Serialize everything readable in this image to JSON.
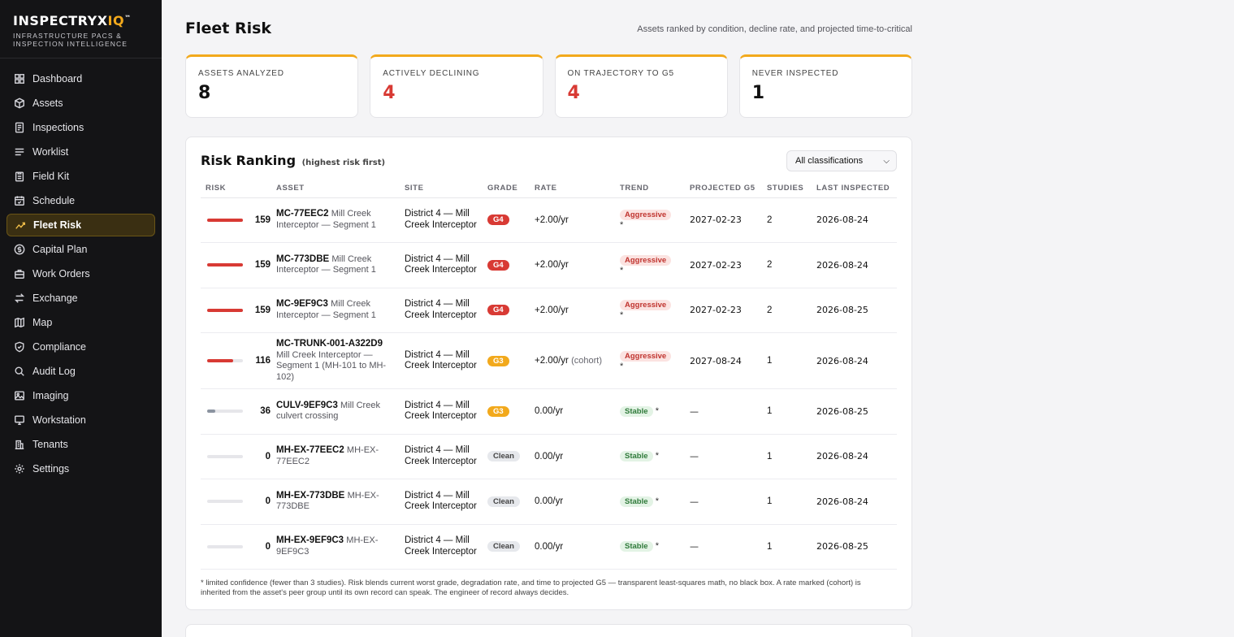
{
  "brand": {
    "name": "INSPECTRYX",
    "name_accent": "IQ",
    "tagline": "INFRASTRUCTURE PACS & INSPECTION INTELLIGENCE"
  },
  "sidebar": {
    "items": [
      {
        "label": "Dashboard",
        "icon": "grid-icon"
      },
      {
        "label": "Assets",
        "icon": "box-icon"
      },
      {
        "label": "Inspections",
        "icon": "doc-icon"
      },
      {
        "label": "Worklist",
        "icon": "list-icon"
      },
      {
        "label": "Field Kit",
        "icon": "clipboard-icon"
      },
      {
        "label": "Schedule",
        "icon": "calendar-icon"
      },
      {
        "label": "Fleet Risk",
        "icon": "trend-icon",
        "active": true
      },
      {
        "label": "Capital Plan",
        "icon": "dollar-icon"
      },
      {
        "label": "Work Orders",
        "icon": "briefcase-icon"
      },
      {
        "label": "Exchange",
        "icon": "swap-icon"
      },
      {
        "label": "Map",
        "icon": "map-icon"
      },
      {
        "label": "Compliance",
        "icon": "shield-icon"
      },
      {
        "label": "Audit Log",
        "icon": "search-icon"
      },
      {
        "label": "Imaging",
        "icon": "image-icon"
      },
      {
        "label": "Workstation",
        "icon": "monitor-icon"
      },
      {
        "label": "Tenants",
        "icon": "building-icon"
      },
      {
        "label": "Settings",
        "icon": "gear-icon"
      }
    ]
  },
  "header": {
    "title": "Fleet Risk",
    "subtitle": "Assets ranked by condition, decline rate, and projected time-to-critical"
  },
  "stats": [
    {
      "label": "ASSETS ANALYZED",
      "value": "8",
      "color": "#111111"
    },
    {
      "label": "ACTIVELY DECLINING",
      "value": "4",
      "color": "#d83a34"
    },
    {
      "label": "ON TRAJECTORY TO G5",
      "value": "4",
      "color": "#d83a34"
    },
    {
      "label": "NEVER INSPECTED",
      "value": "1",
      "color": "#111111"
    }
  ],
  "ranking": {
    "title": "Risk Ranking",
    "hint": "(highest risk first)",
    "filter": "All classifications",
    "columns": [
      "RISK",
      "ASSET",
      "SITE",
      "GRADE",
      "RATE",
      "TREND",
      "PROJECTED G5",
      "STUDIES",
      "LAST INSPECTED"
    ],
    "rows": [
      {
        "score": "159",
        "risk_fraction": 1.0,
        "id": "MC-77EEC2",
        "desc": "Mill Creek Interceptor — Segment 1",
        "site": "District 4 — Mill Creek Interceptor",
        "grade": "G4",
        "rate": "+2.00/yr",
        "rate_note": "",
        "trend": "Aggressive",
        "projected": "2027-02-23",
        "studies": "2",
        "last": "2026-08-24"
      },
      {
        "score": "159",
        "risk_fraction": 1.0,
        "id": "MC-773DBE",
        "desc": "Mill Creek Interceptor — Segment 1",
        "site": "District 4 — Mill Creek Interceptor",
        "grade": "G4",
        "rate": "+2.00/yr",
        "rate_note": "",
        "trend": "Aggressive",
        "projected": "2027-02-23",
        "studies": "2",
        "last": "2026-08-24"
      },
      {
        "score": "159",
        "risk_fraction": 1.0,
        "id": "MC-9EF9C3",
        "desc": "Mill Creek Interceptor — Segment 1",
        "site": "District 4 — Mill Creek Interceptor",
        "grade": "G4",
        "rate": "+2.00/yr",
        "rate_note": "",
        "trend": "Aggressive",
        "projected": "2027-02-23",
        "studies": "2",
        "last": "2026-08-25"
      },
      {
        "score": "116",
        "risk_fraction": 0.73,
        "id": "MC-TRUNK-001-A322D9",
        "desc": "Mill Creek Interceptor — Segment 1 (MH-101 to MH-102)",
        "site": "District 4 — Mill Creek Interceptor",
        "grade": "G3",
        "rate": "+2.00/yr",
        "rate_note": "(cohort)",
        "trend": "Aggressive",
        "projected": "2027-08-24",
        "studies": "1",
        "last": "2026-08-24"
      },
      {
        "score": "36",
        "risk_fraction": 0.23,
        "id": "CULV-9EF9C3",
        "desc": "Mill Creek culvert crossing",
        "site": "District 4 — Mill Creek Interceptor",
        "grade": "G3",
        "rate": "0.00/yr",
        "rate_note": "",
        "trend": "Stable",
        "projected": "—",
        "studies": "1",
        "last": "2026-08-25"
      },
      {
        "score": "0",
        "risk_fraction": 0.0,
        "id": "MH-EX-77EEC2",
        "desc": "MH-EX-77EEC2",
        "site": "District 4 — Mill Creek Interceptor",
        "grade": "Clean",
        "rate": "0.00/yr",
        "rate_note": "",
        "trend": "Stable",
        "projected": "—",
        "studies": "1",
        "last": "2026-08-24"
      },
      {
        "score": "0",
        "risk_fraction": 0.0,
        "id": "MH-EX-773DBE",
        "desc": "MH-EX-773DBE",
        "site": "District 4 — Mill Creek Interceptor",
        "grade": "Clean",
        "rate": "0.00/yr",
        "rate_note": "",
        "trend": "Stable",
        "projected": "—",
        "studies": "1",
        "last": "2026-08-24"
      },
      {
        "score": "0",
        "risk_fraction": 0.0,
        "id": "MH-EX-9EF9C3",
        "desc": "MH-EX-9EF9C3",
        "site": "District 4 — Mill Creek Interceptor",
        "grade": "Clean",
        "rate": "0.00/yr",
        "rate_note": "",
        "trend": "Stable",
        "projected": "—",
        "studies": "1",
        "last": "2026-08-25"
      }
    ],
    "star": "*",
    "footnote": "* limited confidence (fewer than 3 studies). Risk blends current worst grade, degradation rate, and time to projected G5 — transparent least-squares math, no black box. A rate marked (cohort) is inherited from the asset's peer group until its own record can speak. The engineer of record always decides."
  }
}
